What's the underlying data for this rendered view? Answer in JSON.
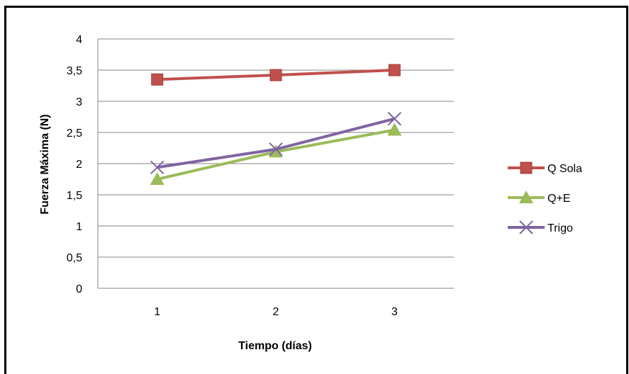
{
  "chart_data": {
    "type": "line",
    "title": "",
    "xlabel": "Tiempo (días)",
    "ylabel": "Fuerza Máxima (N)",
    "categories": [
      "1",
      "2",
      "3"
    ],
    "ylim": [
      0,
      4
    ],
    "y_ticks": [
      "0",
      "0,5",
      "1",
      "1,5",
      "2",
      "2,5",
      "3",
      "3,5",
      "4"
    ],
    "grid": true,
    "legend_position": "right",
    "series": [
      {
        "name": "Q Sola",
        "values": [
          3.35,
          3.42,
          3.5
        ],
        "color": "#c0504d",
        "marker": "square"
      },
      {
        "name": "Q+E",
        "values": [
          1.75,
          2.19,
          2.54
        ],
        "color": "#9bbb59",
        "marker": "triangle"
      },
      {
        "name": "Trigo",
        "values": [
          1.94,
          2.23,
          2.72
        ],
        "color": "#8064a2",
        "marker": "x"
      }
    ]
  }
}
